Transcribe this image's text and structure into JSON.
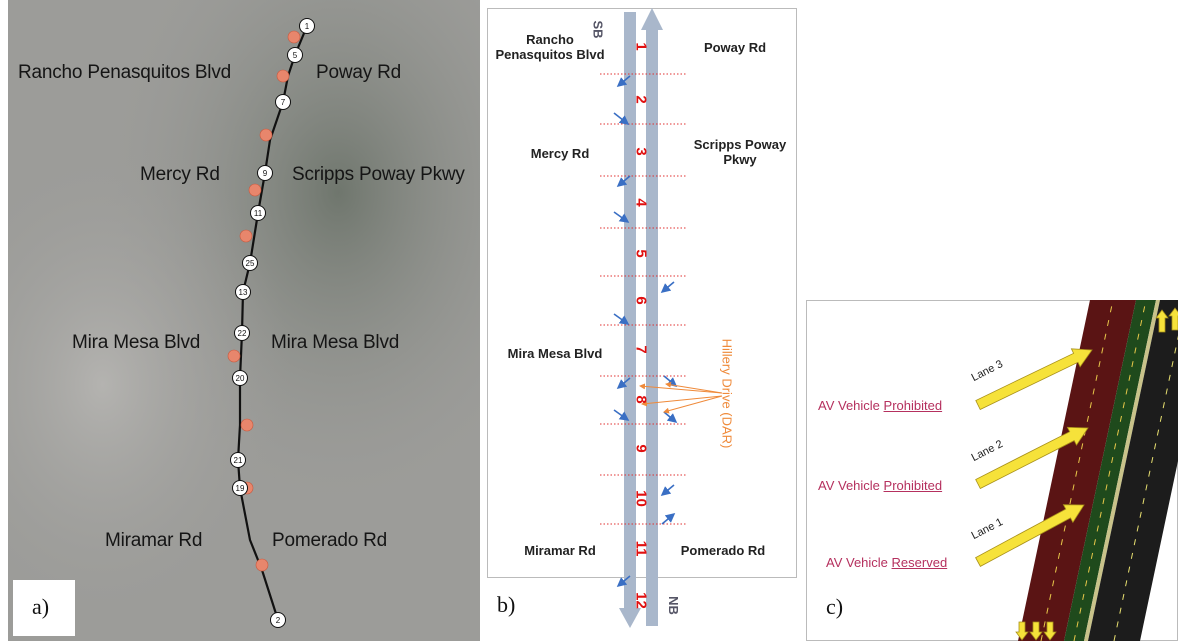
{
  "panel_a": {
    "label": "a)",
    "road_labels": [
      "Rancho Penasquitos Blvd",
      "Poway Rd",
      "Mercy Rd",
      "Scripps Poway Pkwy",
      "Mira Mesa Blvd",
      "Mira Mesa Blvd",
      "Miramar Rd",
      "Pomerado Rd"
    ],
    "stations": [
      "1",
      "5",
      "7",
      "9",
      "11",
      "25",
      "13",
      "22",
      "20",
      "21",
      "19",
      "2"
    ]
  },
  "panel_b": {
    "label": "b)",
    "direction_sb": "SB",
    "direction_nb": "NB",
    "segments": [
      "1",
      "2",
      "3",
      "4",
      "5",
      "6",
      "7",
      "8",
      "9",
      "10",
      "11",
      "12"
    ],
    "left_labels": [
      "Rancho Penasquitos Blvd",
      "Mercy Rd",
      "Mira Mesa Blvd",
      "Miramar Rd"
    ],
    "right_labels": [
      "Poway Rd",
      "Scripps Poway Pkwy",
      "Pomerado Rd"
    ],
    "annotation": "Hillery Drive (DAR)"
  },
  "panel_c": {
    "label": "c)",
    "lanes": [
      {
        "name": "Lane 3",
        "prefix": "AV Vehicle",
        "status": "Prohibited"
      },
      {
        "name": "Lane 2",
        "prefix": "AV Vehicle",
        "status": "Prohibited"
      },
      {
        "name": "Lane 1",
        "prefix": "AV Vehicle",
        "status": "Reserved"
      }
    ]
  }
}
